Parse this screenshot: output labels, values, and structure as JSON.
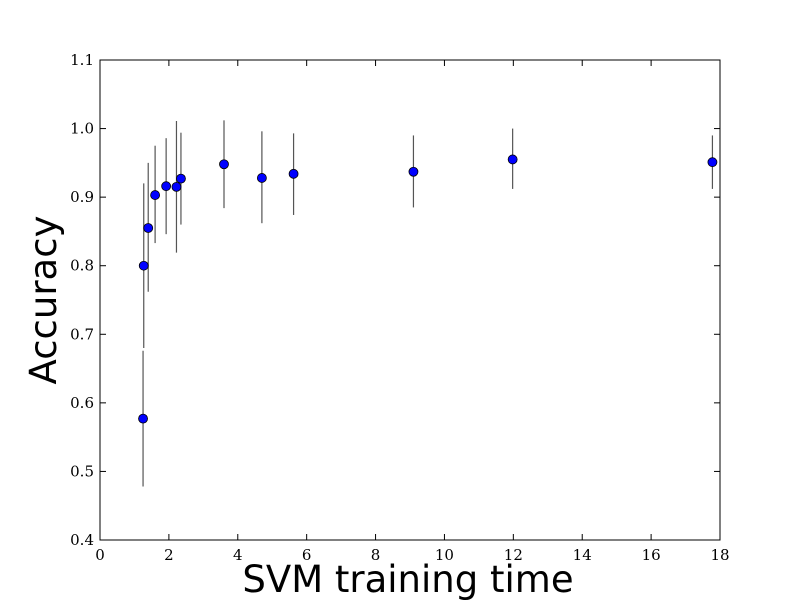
{
  "chart_data": {
    "type": "scatter",
    "title": "",
    "xlabel": "SVM training time",
    "ylabel": "Accuracy",
    "xlim": [
      0,
      18
    ],
    "ylim": [
      0.4,
      1.1
    ],
    "x_ticks": [
      0,
      2,
      4,
      6,
      8,
      10,
      12,
      14,
      16,
      18
    ],
    "x_tick_labels": [
      "0",
      "2",
      "4",
      "6",
      "8",
      "10",
      "12",
      "14",
      "16",
      "18"
    ],
    "y_ticks": [
      0.4,
      0.5,
      0.6,
      0.7,
      0.8,
      0.9,
      1.0,
      1.1
    ],
    "y_tick_labels": [
      "0.4",
      "0.5",
      "0.6",
      "0.7",
      "0.8",
      "0.9",
      "1.0",
      "1.1"
    ],
    "grid": false,
    "legend": "none",
    "marker_color": "#0000ff",
    "errorbar_color": "#555555",
    "points": [
      {
        "x": 1.25,
        "y": 0.577,
        "err_low": 0.478,
        "err_high": 0.676
      },
      {
        "x": 1.27,
        "y": 0.8,
        "err_low": 0.68,
        "err_high": 0.92
      },
      {
        "x": 1.4,
        "y": 0.855,
        "err_low": 0.762,
        "err_high": 0.95
      },
      {
        "x": 1.6,
        "y": 0.903,
        "err_low": 0.833,
        "err_high": 0.975
      },
      {
        "x": 1.92,
        "y": 0.916,
        "err_low": 0.846,
        "err_high": 0.986
      },
      {
        "x": 2.22,
        "y": 0.915,
        "err_low": 0.819,
        "err_high": 1.011
      },
      {
        "x": 2.35,
        "y": 0.927,
        "err_low": 0.86,
        "err_high": 0.994
      },
      {
        "x": 3.6,
        "y": 0.948,
        "err_low": 0.884,
        "err_high": 1.012
      },
      {
        "x": 4.7,
        "y": 0.928,
        "err_low": 0.862,
        "err_high": 0.996
      },
      {
        "x": 5.62,
        "y": 0.934,
        "err_low": 0.874,
        "err_high": 0.993
      },
      {
        "x": 9.1,
        "y": 0.937,
        "err_low": 0.885,
        "err_high": 0.99
      },
      {
        "x": 11.98,
        "y": 0.955,
        "err_low": 0.912,
        "err_high": 1.0
      },
      {
        "x": 17.78,
        "y": 0.951,
        "err_low": 0.912,
        "err_high": 0.99
      }
    ]
  }
}
